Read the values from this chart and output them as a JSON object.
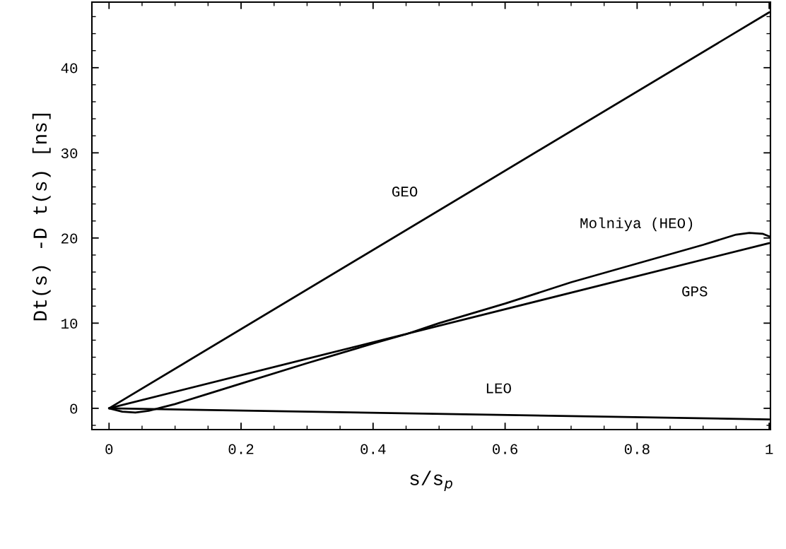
{
  "chart_data": {
    "type": "line",
    "xlabel": "s/s$_{p}$",
    "ylabel": "Dt(s) -D t(s) [ns]",
    "xlim": [
      -0.026,
      1.002
    ],
    "ylim": [
      -2.5,
      47.7
    ],
    "xticks": [
      0,
      0.2,
      0.4,
      0.6,
      0.8,
      1
    ],
    "yticks": [
      0,
      10,
      20,
      30,
      40
    ],
    "grid": false,
    "legend": false,
    "line_style": "solid",
    "marker": "none",
    "series": [
      {
        "name": "GEO",
        "color": "#000000",
        "x": [
          0,
          1
        ],
        "values": [
          0,
          46.5
        ]
      },
      {
        "name": "GPS",
        "color": "#000000",
        "x": [
          0,
          1
        ],
        "values": [
          0,
          19.4
        ]
      },
      {
        "name": "Molniya (HEO)",
        "color": "#000000",
        "x": [
          0,
          0.02,
          0.04,
          0.06,
          0.08,
          0.1,
          0.15,
          0.2,
          0.3,
          0.4,
          0.45,
          0.5,
          0.6,
          0.7,
          0.8,
          0.9,
          0.95,
          0.97,
          0.99,
          1
        ],
        "values": [
          0,
          -0.4,
          -0.5,
          -0.3,
          0.1,
          0.5,
          1.7,
          2.9,
          5.3,
          7.6,
          8.7,
          10.0,
          12.3,
          14.8,
          17.0,
          19.2,
          20.4,
          20.6,
          20.5,
          20.2
        ]
      },
      {
        "name": "LEO",
        "color": "#000000",
        "x": [
          0,
          1
        ],
        "values": [
          0,
          -1.3
        ]
      }
    ]
  }
}
